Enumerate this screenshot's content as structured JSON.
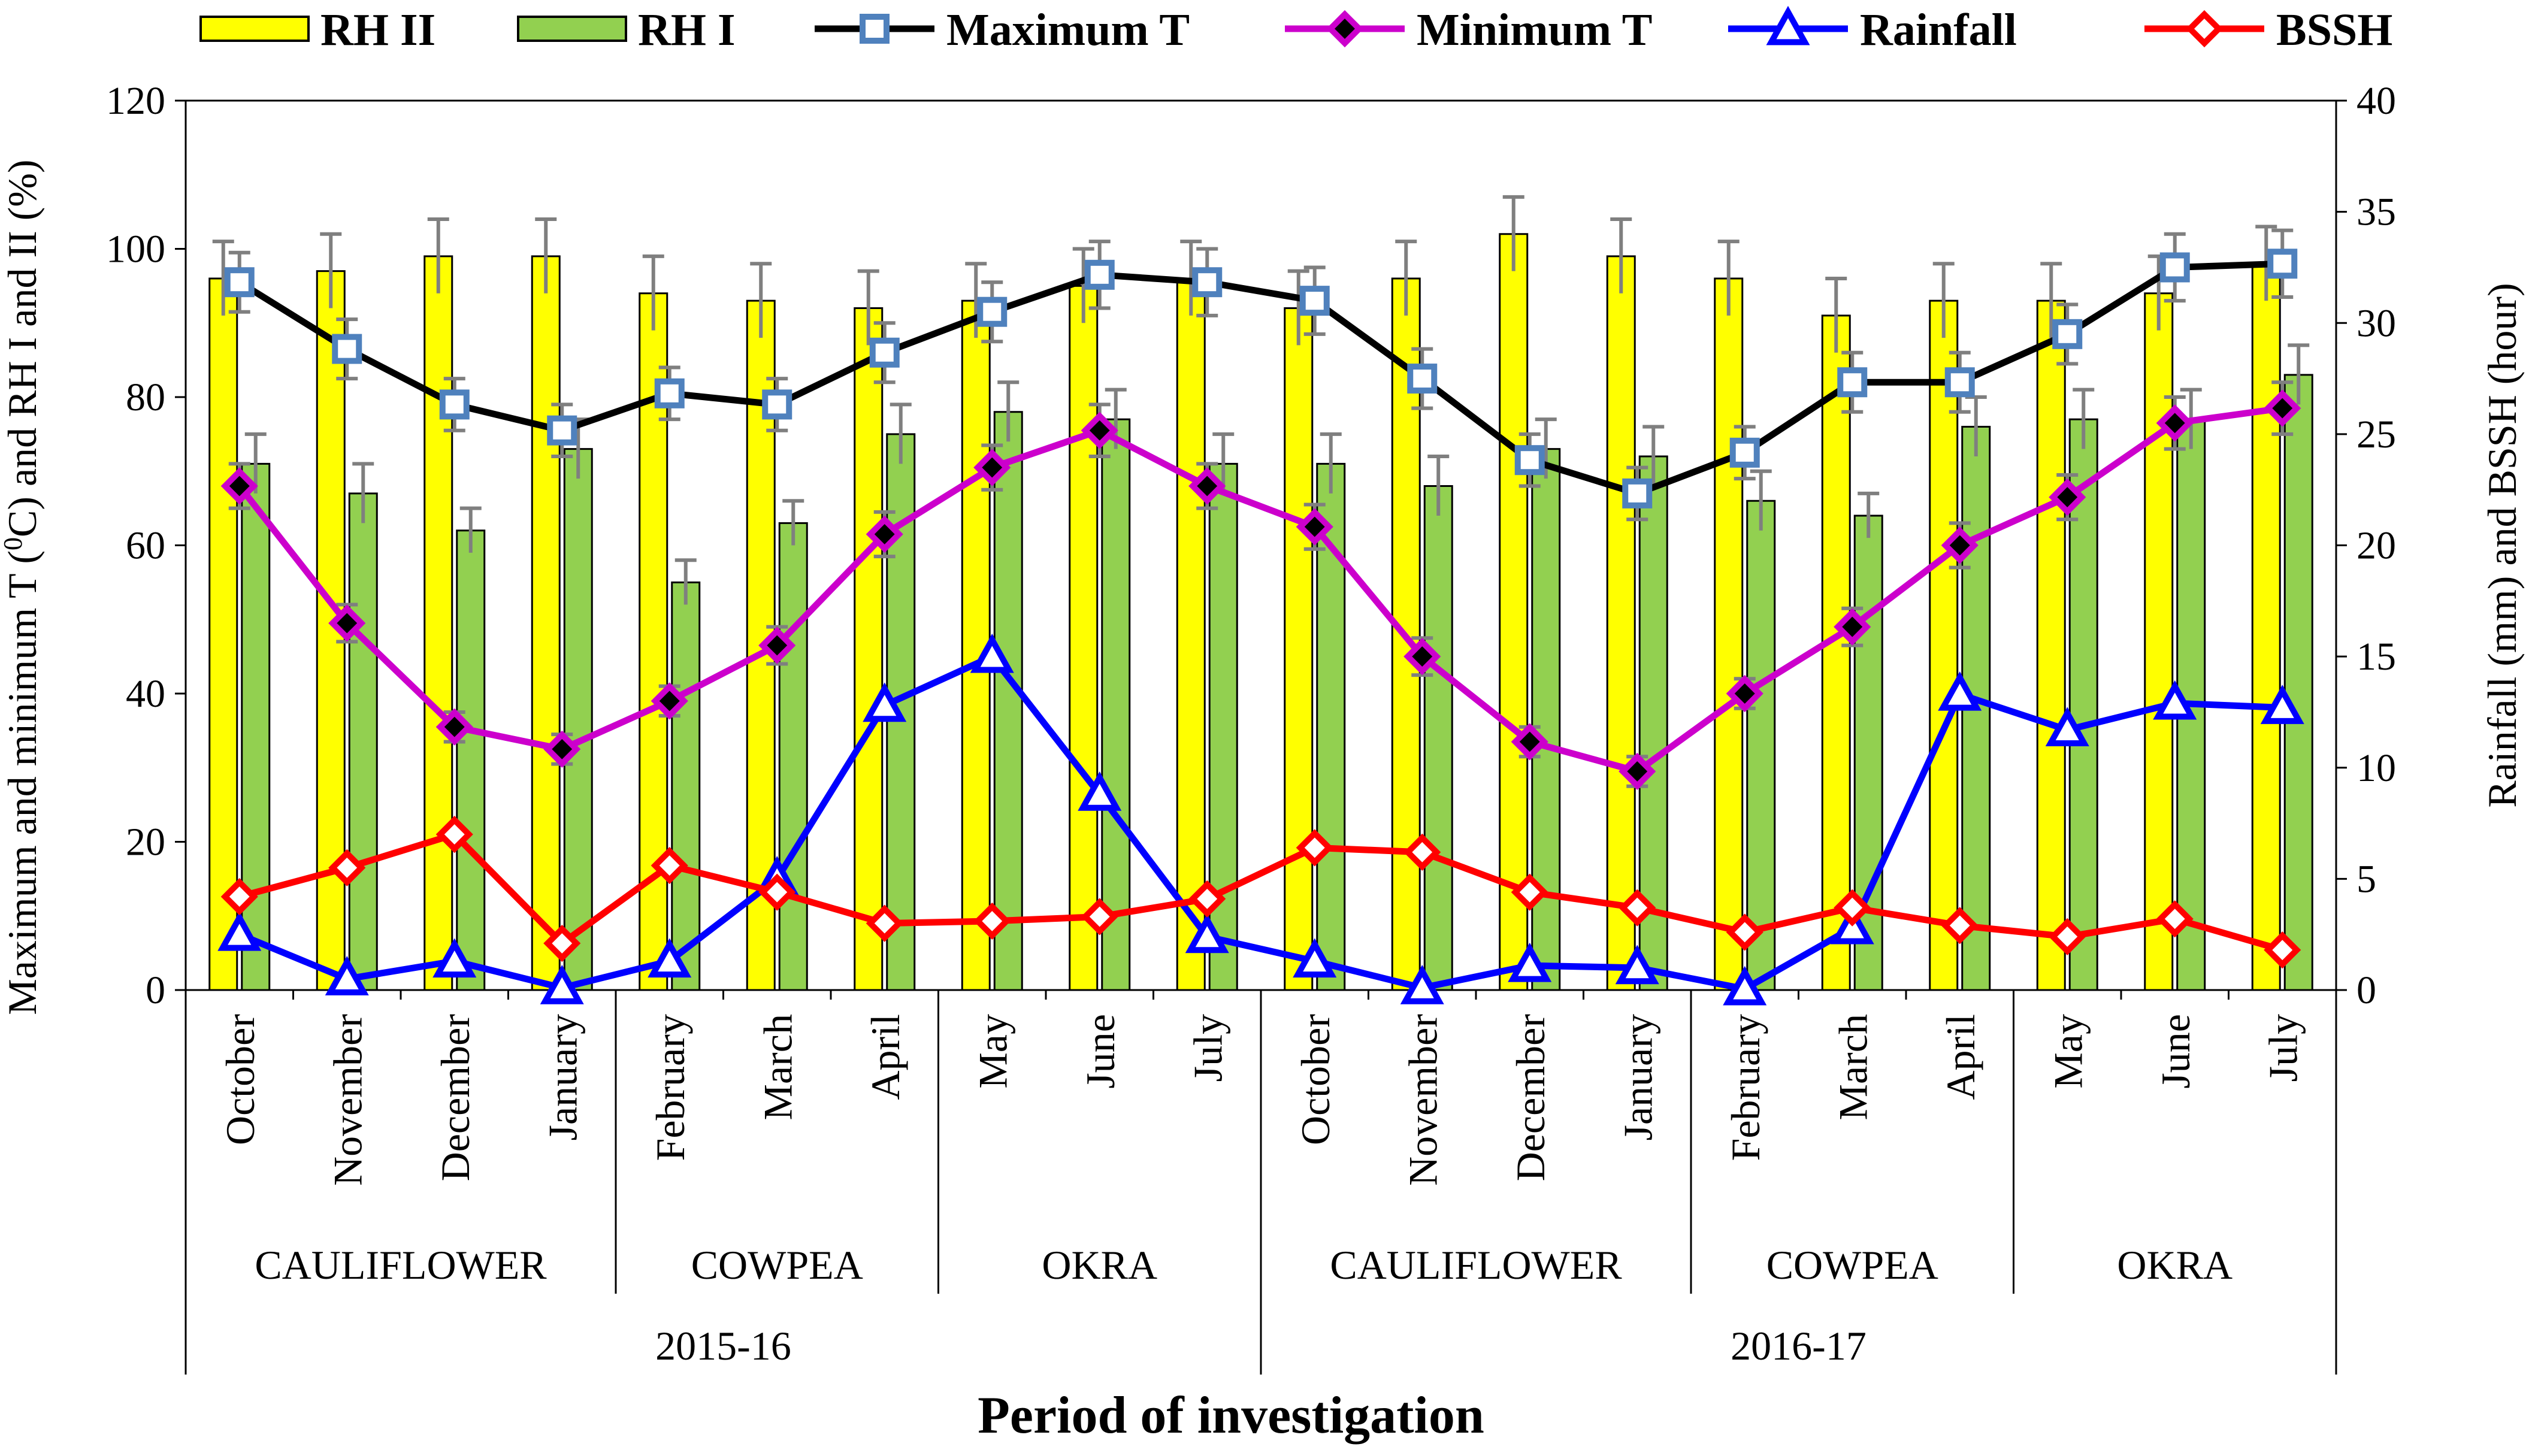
{
  "chart_data": {
    "type": "bar",
    "xlabel": "Period of investigation",
    "ylabel": "Maximum and minimum T (⁰C) and RH I and II (%)",
    "ylabel_parts": [
      "Maximum and minimum T (",
      "0",
      "C) and RH I and II (%)"
    ],
    "y2label": "Rainfall (mm) and BSSH (hour)",
    "ylim": [
      0,
      120
    ],
    "y2lim": [
      0,
      40
    ],
    "yticks": [
      "0",
      "20",
      "40",
      "60",
      "80",
      "100",
      "120"
    ],
    "y2ticks": [
      "0",
      "5",
      "10",
      "15",
      "20",
      "25",
      "30",
      "35",
      "40"
    ],
    "categories": [
      "October",
      "November",
      "December",
      "January",
      "February",
      "March",
      "April",
      "May",
      "June",
      "July",
      "October",
      "November",
      "December",
      "January",
      "February",
      "March",
      "April",
      "May",
      "June",
      "July"
    ],
    "crops": [
      {
        "label": "CAULIFLOWER",
        "start": 0,
        "end": 3
      },
      {
        "label": "COWPEA",
        "start": 4,
        "end": 6
      },
      {
        "label": "OKRA",
        "start": 7,
        "end": 9
      },
      {
        "label": "CAULIFLOWER",
        "start": 10,
        "end": 13
      },
      {
        "label": "COWPEA",
        "start": 14,
        "end": 16
      },
      {
        "label": "OKRA",
        "start": 17,
        "end": 19
      }
    ],
    "seasons": [
      {
        "label": "2015-16",
        "start": 0,
        "end": 9
      },
      {
        "label": "2016-17",
        "start": 10,
        "end": 19
      }
    ],
    "series": [
      {
        "name": "RH II",
        "kind": "bar",
        "axis": "left",
        "color": "#ffff00",
        "values": [
          96,
          97,
          99,
          99,
          94,
          93,
          92,
          93,
          95,
          96,
          92,
          96,
          102,
          99,
          96,
          91,
          93,
          93,
          94,
          98
        ],
        "errors": [
          5,
          5,
          5,
          5,
          5,
          5,
          5,
          5,
          5,
          5,
          5,
          5,
          5,
          5,
          5,
          5,
          5,
          5,
          5,
          5
        ]
      },
      {
        "name": "RH I",
        "kind": "bar",
        "axis": "left",
        "color": "#92d050",
        "values": [
          71,
          67,
          62,
          73,
          55,
          63,
          75,
          78,
          77,
          71,
          71,
          68,
          73,
          72,
          66,
          64,
          76,
          77,
          77,
          83
        ],
        "errors": [
          4,
          4,
          3,
          4,
          3,
          3,
          4,
          4,
          4,
          4,
          4,
          4,
          4,
          4,
          4,
          3,
          4,
          4,
          4,
          4
        ]
      },
      {
        "name": "Maximum T",
        "kind": "line",
        "axis": "left",
        "color": "#000000",
        "marker": "square",
        "marker_color": "#4f81bd",
        "values": [
          95.5,
          86.5,
          79,
          75.5,
          80.5,
          79,
          86,
          91.5,
          96.5,
          95.5,
          93,
          82.5,
          71.5,
          67,
          72.5,
          82,
          82,
          88.5,
          97.5,
          98
        ],
        "errors": [
          4,
          4,
          3.5,
          3.5,
          3.5,
          3.5,
          4,
          4,
          4.5,
          4.5,
          4.5,
          4,
          3.5,
          3.5,
          3.5,
          4,
          4,
          4,
          4.5,
          4.5
        ]
      },
      {
        "name": "Minimum T",
        "kind": "line",
        "axis": "left",
        "color": "#cc00cc",
        "marker": "diamond",
        "marker_color": "#000000",
        "values": [
          68,
          49.5,
          35.5,
          32.5,
          39,
          46.5,
          61.5,
          70.5,
          75.5,
          68,
          62.5,
          45,
          33.5,
          29.5,
          40,
          49,
          60,
          66.5,
          76.5,
          78.5
        ],
        "errors": [
          3,
          2.5,
          2,
          2,
          2,
          2.5,
          3,
          3,
          3.5,
          3,
          3,
          2.5,
          2,
          2,
          2,
          2.5,
          3,
          3,
          3.5,
          3.5
        ]
      },
      {
        "name": "Rainfall",
        "kind": "line",
        "axis": "right",
        "color": "#0000ff",
        "marker": "triangle",
        "marker_color": "#ffffff",
        "values": [
          2.5,
          0.5,
          1.3,
          0.1,
          1.3,
          5,
          12.8,
          15,
          8.8,
          2.4,
          1.3,
          0.1,
          1.1,
          1,
          0.05,
          2.8,
          13.3,
          11.7,
          12.9,
          12.7
        ]
      },
      {
        "name": "BSSH",
        "kind": "line",
        "axis": "right",
        "color": "#ff0000",
        "marker": "diamond",
        "marker_color": "#ffffff",
        "values": [
          4.2,
          5.5,
          7,
          2.1,
          5.6,
          4.4,
          3,
          3.1,
          3.3,
          4.1,
          6.4,
          6.2,
          4.4,
          3.7,
          2.6,
          3.7,
          2.9,
          2.4,
          3.2,
          1.8
        ]
      }
    ]
  }
}
